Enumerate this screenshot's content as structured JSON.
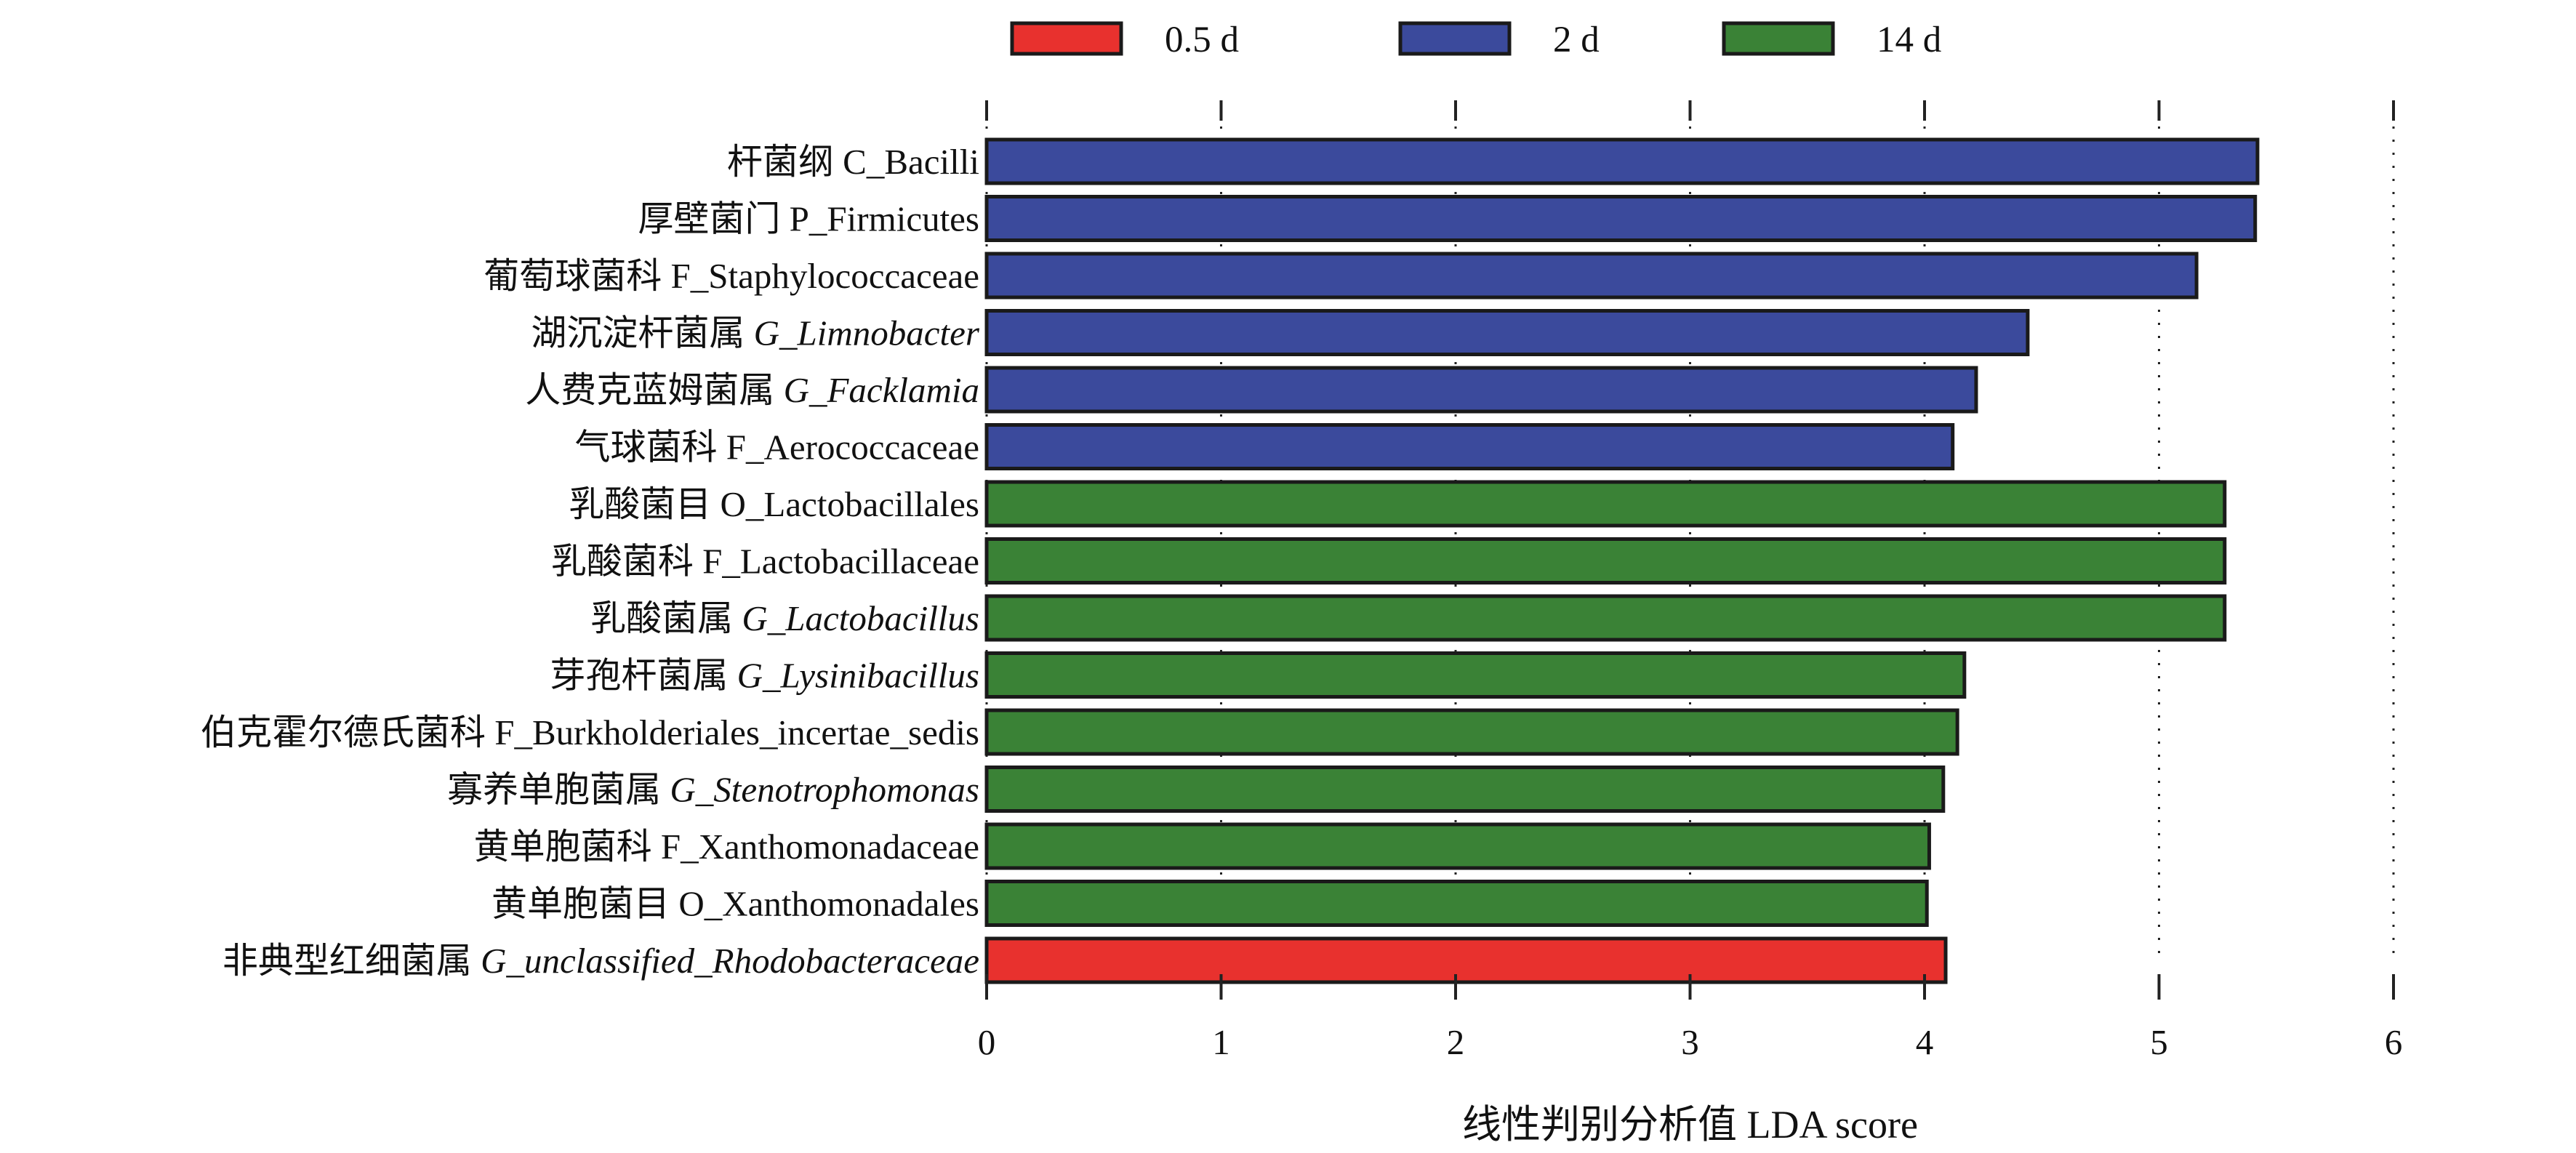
{
  "chart_data": {
    "type": "bar",
    "orientation": "horizontal",
    "xlabel": "线性判别分析值 LDA score",
    "xlim": [
      0,
      6
    ],
    "xticks": [
      "0",
      "1",
      "2",
      "3",
      "4",
      "5",
      "6"
    ],
    "grid": "vertical dotted",
    "legend_position": "top",
    "legend": [
      {
        "name": "0.5 d",
        "color": "#e8312e"
      },
      {
        "name": "2 d",
        "color": "#3b4a9c"
      },
      {
        "name": "14 d",
        "color": "#3a8236"
      }
    ],
    "bars": [
      {
        "label_cn": "杆菌纲",
        "label_taxon": "C_Bacilli",
        "italic": false,
        "group": "2 d",
        "value": 5.42
      },
      {
        "label_cn": "厚壁菌门",
        "label_taxon": "P_Firmicutes",
        "italic": false,
        "group": "2 d",
        "value": 5.41
      },
      {
        "label_cn": "葡萄球菌科",
        "label_taxon": "F_Staphylococcaceae",
        "italic": false,
        "group": "2 d",
        "value": 5.16
      },
      {
        "label_cn": "湖沉淀杆菌属",
        "label_taxon": "G_Limnobacter",
        "italic": true,
        "group": "2 d",
        "value": 4.44
      },
      {
        "label_cn": "人费克蓝姆菌属",
        "label_taxon": "G_Facklamia",
        "italic": true,
        "group": "2 d",
        "value": 4.22
      },
      {
        "label_cn": "气球菌科",
        "label_taxon": "F_Aerococcaceae",
        "italic": false,
        "group": "2 d",
        "value": 4.12
      },
      {
        "label_cn": "乳酸菌目",
        "label_taxon": "O_Lactobacillales",
        "italic": false,
        "group": "14 d",
        "value": 5.28
      },
      {
        "label_cn": "乳酸菌科",
        "label_taxon": "F_Lactobacillaceae",
        "italic": false,
        "group": "14 d",
        "value": 5.28
      },
      {
        "label_cn": "乳酸菌属",
        "label_taxon": "G_Lactobacillus",
        "italic": true,
        "group": "14 d",
        "value": 5.28
      },
      {
        "label_cn": "芽孢杆菌属",
        "label_taxon": "G_Lysinibacillus",
        "italic": true,
        "group": "14 d",
        "value": 4.17
      },
      {
        "label_cn": "伯克霍尔德氏菌科",
        "label_taxon": "F_Burkholderiales_incertae_sedis",
        "italic": false,
        "group": "14 d",
        "value": 4.14
      },
      {
        "label_cn": "寡养单胞菌属",
        "label_taxon": "G_Stenotrophomonas",
        "italic": true,
        "group": "14 d",
        "value": 4.08
      },
      {
        "label_cn": "黄单胞菌科",
        "label_taxon": "F_Xanthomonadaceae",
        "italic": false,
        "group": "14 d",
        "value": 4.02
      },
      {
        "label_cn": "黄单胞菌目",
        "label_taxon": "O_Xanthomonadales",
        "italic": false,
        "group": "14 d",
        "value": 4.01
      },
      {
        "label_cn": "非典型红细菌属",
        "label_taxon": "G_unclassified_Rhodobacteraceae",
        "italic": true,
        "group": "0.5 d",
        "value": 4.09
      }
    ]
  }
}
